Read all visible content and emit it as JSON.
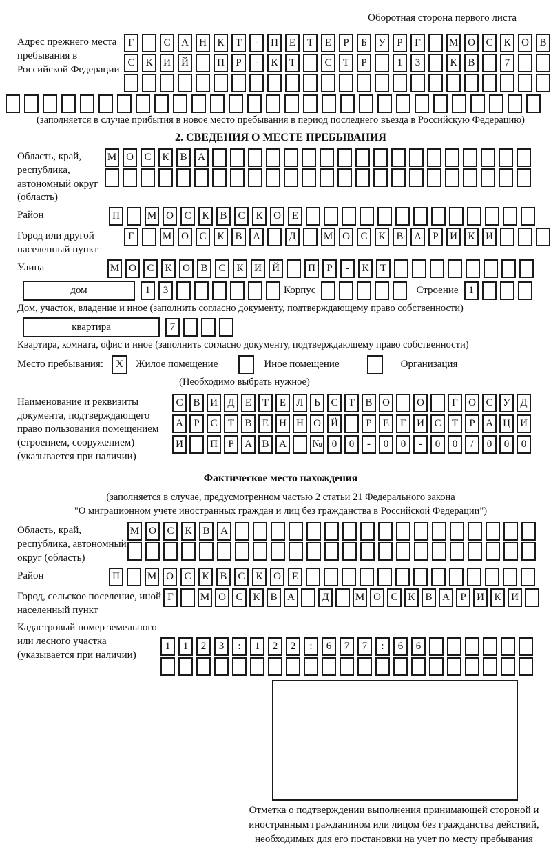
{
  "header": {
    "title": "Оборотная сторона первого листа"
  },
  "prev_address": {
    "label": "Адрес прежнего места пребывания в Российской Федерации",
    "rows": [
      "Г САНКТ-ПЕТЕРБУРГ МОСКОВ",
      "СКИЙ ПР-КТ СТР 13 КВ 7",
      "",
      ""
    ],
    "note": "(заполняется в случае прибытия в новое место пребывания в период последнего въезда в Российскую Федерацию)"
  },
  "section2": {
    "title": "2. СВЕДЕНИЯ О МЕСТЕ ПРЕБЫВАНИЯ",
    "region": {
      "label": "Область, край, республика, автономный округ (область)",
      "rows": [
        "МОСКВА",
        ""
      ]
    },
    "district": {
      "label": "Район",
      "value": "П МОСКВСКОЕ"
    },
    "city": {
      "label": "Город или другой населенный пункт",
      "value": "Г МОСКВА Д МОСКВАРИКИ"
    },
    "street": {
      "label": "Улица",
      "value": "МОСКОВСКИЙ ПР-КТ"
    },
    "house": {
      "box_label": "дом",
      "value": "13",
      "korpus_label": "Корпус",
      "korpus_value": "",
      "stroenie_label": "Строение",
      "stroenie_value": "1"
    },
    "house_note": "Дом, участок, владение и иное (заполнить согласно документу, подтверждающему право собственности)",
    "apartment": {
      "box_label": "квартира",
      "value": "7"
    },
    "apartment_note": "Квартира, комната, офис и иное (заполнить согласно документу, подтверждающему право собственности)",
    "stay_type": {
      "label": "Место пребывания:",
      "options": [
        {
          "label": "Жилое помещение",
          "mark": "X"
        },
        {
          "label": "Иное помещение",
          "mark": ""
        },
        {
          "label": "Организация",
          "mark": ""
        }
      ],
      "note": "(Необходимо выбрать нужное)"
    },
    "doc": {
      "label": "Наименование и реквизиты документа, подтверждающего право пользования помещением (строением, сооружением) (указывается при наличии)",
      "rows": [
        "СВИДЕТЕЛЬСТВО О ГОСУД",
        "АРСТВЕННОЙ РЕГИСТРАЦИ",
        "И ПРАВА №00-00-00/000"
      ]
    }
  },
  "actual_location": {
    "title": "Фактическое место нахождения",
    "note_line1": "(заполняется в случае, предусмотренном частью 2 статьи 21 Федерального закона",
    "note_line2": "\"О миграционном учете иностранных граждан и лиц без гражданства в Российской Федерации\")",
    "region": {
      "label": "Область, край, республика, автономный округ (область)",
      "rows": [
        "МОСКВА",
        ""
      ]
    },
    "district": {
      "label": "Район",
      "value": "П МОСКВСКОЕ"
    },
    "city": {
      "label": "Город, сельское поселение, иной населенный пункт",
      "value": "Г МОСКВА Д МОСКВАРИКИ"
    },
    "cadastre": {
      "label": "Кадастровый номер земельного или лесного участка (указывается при наличии)",
      "rows": [
        "1123:122:677:66",
        ""
      ]
    }
  },
  "confirmation": {
    "note": "Отметка о подтверждении выполнения принимающей стороной и иностранным гражданином или лицом без гражданства действий, необходимых для его постановки на учет по месту пребывания"
  }
}
